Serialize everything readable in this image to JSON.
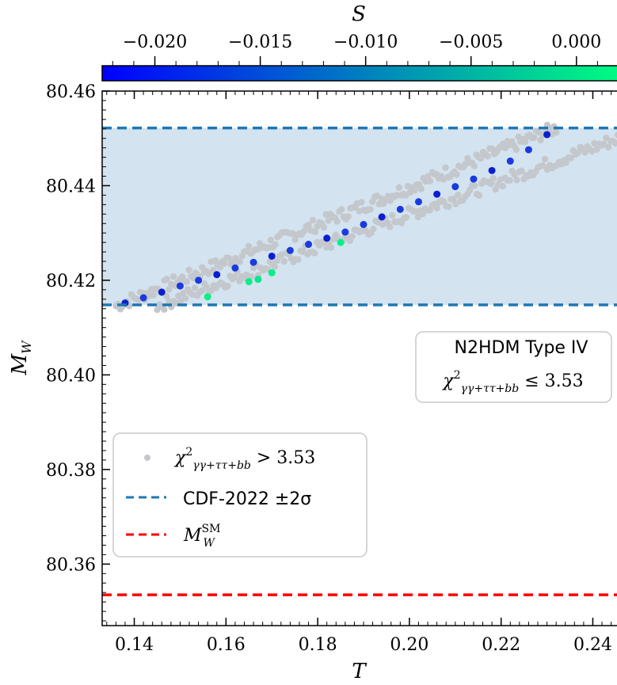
{
  "chart_data": {
    "type": "scatter",
    "title": "",
    "xlabel": "T",
    "ylabel": "M_W",
    "xlim": [
      0.133,
      0.247
    ],
    "ylim": [
      80.347,
      80.46
    ],
    "x_ticks": [
      0.14,
      0.16,
      0.18,
      0.2,
      0.22,
      0.24
    ],
    "x_tick_labels": [
      "0.14",
      "0.16",
      "0.18",
      "0.20",
      "0.22",
      "0.24"
    ],
    "y_ticks": [
      80.36,
      80.38,
      80.4,
      80.42,
      80.44,
      80.46
    ],
    "y_tick_labels": [
      "80.36",
      "80.38",
      "80.40",
      "80.42",
      "80.44",
      "80.46"
    ],
    "colorbar": {
      "label": "S",
      "range": [
        -0.0225,
        0.0023
      ],
      "ticks": [
        -0.02,
        -0.015,
        -0.01,
        -0.005,
        0.0
      ],
      "tick_labels": [
        "−0.020",
        "−0.015",
        "−0.010",
        "−0.005",
        "0.000"
      ],
      "colormap": [
        "#0000ff",
        "#00ff80"
      ]
    },
    "cdf_band": {
      "low": 80.4148,
      "high": 80.4522,
      "fill": "#d3e3f0",
      "line_color": "#1f77b4"
    },
    "sm_line": {
      "value": 80.3535,
      "color": "#ff0000"
    },
    "series": [
      {
        "kind": "excluded",
        "color": "#c4c8cc",
        "band": [
          [
            0.136,
            80.4146
          ],
          [
            0.232,
            80.4522
          ]
        ],
        "band_lower": [
          [
            0.145,
            80.4146
          ],
          [
            0.247,
            80.4505
          ]
        ]
      },
      {
        "kind": "allowed",
        "points": [
          {
            "x": 0.138,
            "y": 80.4152,
            "s": -0.021
          },
          {
            "x": 0.142,
            "y": 80.4163,
            "s": -0.02
          },
          {
            "x": 0.146,
            "y": 80.4175,
            "s": -0.021
          },
          {
            "x": 0.15,
            "y": 80.4188,
            "s": -0.019
          },
          {
            "x": 0.154,
            "y": 80.42,
            "s": -0.02
          },
          {
            "x": 0.158,
            "y": 80.4212,
            "s": -0.021
          },
          {
            "x": 0.162,
            "y": 80.4226,
            "s": -0.019
          },
          {
            "x": 0.166,
            "y": 80.4238,
            "s": -0.02
          },
          {
            "x": 0.17,
            "y": 80.4251,
            "s": -0.021
          },
          {
            "x": 0.174,
            "y": 80.4263,
            "s": -0.019
          },
          {
            "x": 0.178,
            "y": 80.4276,
            "s": -0.02
          },
          {
            "x": 0.182,
            "y": 80.4289,
            "s": -0.021
          },
          {
            "x": 0.186,
            "y": 80.4302,
            "s": -0.019
          },
          {
            "x": 0.19,
            "y": 80.4318,
            "s": -0.02
          },
          {
            "x": 0.194,
            "y": 80.4334,
            "s": -0.021
          },
          {
            "x": 0.198,
            "y": 80.435,
            "s": -0.019
          },
          {
            "x": 0.202,
            "y": 80.4366,
            "s": -0.02
          },
          {
            "x": 0.206,
            "y": 80.4382,
            "s": -0.021
          },
          {
            "x": 0.21,
            "y": 80.4398,
            "s": -0.019
          },
          {
            "x": 0.214,
            "y": 80.4414,
            "s": -0.02
          },
          {
            "x": 0.218,
            "y": 80.4432,
            "s": -0.021
          },
          {
            "x": 0.222,
            "y": 80.4452,
            "s": -0.019
          },
          {
            "x": 0.226,
            "y": 80.4476,
            "s": -0.02
          },
          {
            "x": 0.23,
            "y": 80.4508,
            "s": -0.021
          },
          {
            "x": 0.156,
            "y": 80.4165,
            "s": 0.001
          },
          {
            "x": 0.165,
            "y": 80.4197,
            "s": 0.001
          },
          {
            "x": 0.167,
            "y": 80.4202,
            "s": 0.0
          },
          {
            "x": 0.17,
            "y": 80.4216,
            "s": 0.001
          },
          {
            "x": 0.185,
            "y": 80.428,
            "s": 0.001
          }
        ]
      }
    ],
    "annotation": {
      "line1": "N2HDM Type IV",
      "line2": "χ² γγ+ττ+bb ≤ 3.53"
    },
    "legend": {
      "position": "center-left",
      "entries": [
        {
          "label": "χ² γγ+ττ+bb > 3.53",
          "color": "#c4c8cc",
          "style": "marker"
        },
        {
          "label": "CDF-2022 ±2σ",
          "color": "#1f77b4",
          "style": "dashed"
        },
        {
          "label": "M_W^SM",
          "color": "#ff0000",
          "style": "dashed"
        }
      ]
    }
  }
}
